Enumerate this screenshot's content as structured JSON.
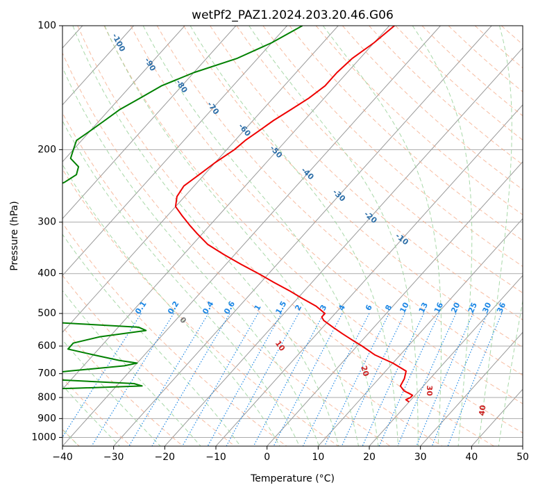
{
  "chart_data": {
    "type": "skew-t",
    "title": "wetPf2_PAZ1.2024.203.20.46.G06",
    "xlabel": "Temperature (°C)",
    "ylabel": "Pressure (hPa)",
    "xlim": [
      -40,
      50
    ],
    "ylim": [
      1050,
      100
    ],
    "y_scale": "log",
    "grid": true,
    "x_ticks": [
      -40,
      -30,
      -20,
      -10,
      0,
      10,
      20,
      30,
      40,
      50
    ],
    "x_tick_labels": [
      "−40",
      "−30",
      "−20",
      "−10",
      "0",
      "10",
      "20",
      "30",
      "40",
      "50"
    ],
    "y_ticks": [
      100,
      200,
      300,
      400,
      500,
      600,
      700,
      800,
      900,
      1000
    ],
    "y_tick_labels": [
      "100",
      "200",
      "300",
      "400",
      "500",
      "600",
      "700",
      "800",
      "900",
      "1000"
    ],
    "temperature_profile": {
      "color": "#ee0000",
      "pressure": [
        100,
        110,
        120,
        130,
        140,
        150,
        160,
        170,
        180,
        190,
        200,
        215,
        230,
        245,
        260,
        275,
        290,
        305,
        320,
        340,
        360,
        380,
        400,
        420,
        440,
        460,
        480,
        500,
        510,
        520,
        540,
        560,
        580,
        600,
        630,
        660,
        690,
        720,
        750,
        770,
        790,
        800,
        810,
        820
      ],
      "temperature": [
        -49,
        -50,
        -51.5,
        -52,
        -52,
        -53,
        -54.5,
        -56,
        -57,
        -58,
        -58.5,
        -60,
        -61,
        -62,
        -61.5,
        -60,
        -57,
        -54,
        -51,
        -47,
        -42,
        -37,
        -32,
        -27.5,
        -23,
        -19,
        -15,
        -12,
        -12,
        -11,
        -8,
        -5,
        -2,
        1,
        5,
        10,
        14,
        15,
        15.5,
        17,
        19.5,
        19.5,
        19,
        20
      ]
    },
    "dewpoint_profile": {
      "color": "#008000",
      "pressure": [
        100,
        110,
        120,
        130,
        140,
        150,
        160,
        170,
        180,
        190,
        200,
        210,
        220,
        230,
        240,
        250,
        260,
        270,
        280,
        300,
        320,
        340,
        360,
        380,
        420,
        440,
        460,
        480,
        500,
        505,
        510,
        520,
        530,
        540,
        550,
        570,
        590,
        610,
        630,
        650,
        660,
        670,
        690,
        710,
        720,
        730,
        740,
        750,
        760,
        770,
        780,
        790,
        800,
        805,
        810,
        815,
        820
      ],
      "dewpoint": [
        -67,
        -70,
        -74,
        -80,
        -84,
        -86,
        -88,
        -89,
        -90,
        -91,
        -90,
        -89,
        -86,
        -85,
        -86,
        -88,
        -92,
        -100,
        -105,
        -108,
        -108,
        -104,
        -102,
        -104,
        -120,
        -120,
        -118,
        -117,
        -106,
        -96,
        -84,
        -70,
        -58,
        -46,
        -44,
        -52,
        -56,
        -56,
        -50,
        -44,
        -40,
        -42,
        -52,
        -60,
        -57,
        -47,
        -37,
        -35,
        -48,
        -70,
        -75,
        -100,
        -120,
        -95,
        -80,
        -65,
        -60
      ]
    },
    "dry_adiabat_labels": [
      "-100",
      "-90",
      "-80",
      "-70",
      "-60",
      "-50",
      "-40",
      "-30",
      "-20",
      "-10"
    ],
    "mixing_ratio_labels": [
      "0.1",
      "0.2",
      "0.4",
      "0.6",
      "1",
      "1.5",
      "2",
      "3",
      "4",
      "6",
      "8",
      "10",
      "13",
      "16",
      "20",
      "25",
      "30",
      "36"
    ],
    "moist_adiabat_labels": [
      "0",
      "10",
      "20",
      "30",
      "40"
    ],
    "colors": {
      "temperature": "#ee0000",
      "dewpoint": "#008000",
      "isotherm": "#999999",
      "isobar": "#aaaaaa",
      "dry_adiabat": "#f4a582",
      "moist_adiabat": "#9fd49f",
      "mixing_ratio": "#1e88e5",
      "dry_adiabat_label": "#2e6fa8",
      "moist_adiabat_label": "#cc2222"
    }
  }
}
